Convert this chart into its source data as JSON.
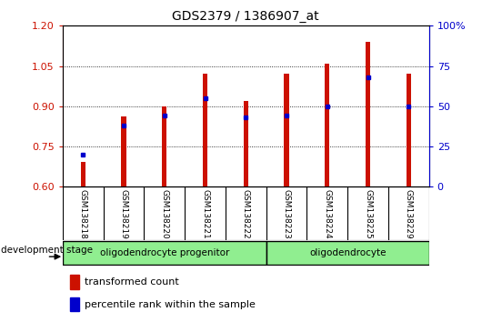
{
  "title": "GDS2379 / 1386907_at",
  "samples": [
    "GSM138218",
    "GSM138219",
    "GSM138220",
    "GSM138221",
    "GSM138222",
    "GSM138223",
    "GSM138224",
    "GSM138225",
    "GSM138229"
  ],
  "transformed_count": [
    0.692,
    0.862,
    0.9,
    1.02,
    0.92,
    1.02,
    1.058,
    1.14,
    1.02
  ],
  "percentile_rank": [
    20,
    38,
    44,
    55,
    43,
    44,
    50,
    68,
    50
  ],
  "ylim_left": [
    0.6,
    1.2
  ],
  "ylim_right": [
    0,
    100
  ],
  "yticks_left": [
    0.6,
    0.75,
    0.9,
    1.05,
    1.2
  ],
  "yticks_right": [
    0,
    25,
    50,
    75,
    100
  ],
  "bar_color": "#cc1100",
  "dot_color": "#0000cc",
  "bar_bottom": 0.6,
  "groups": [
    {
      "label": "oligodendrocyte progenitor",
      "samples_count": 5
    },
    {
      "label": "oligodendrocyte",
      "samples_count": 4
    }
  ],
  "group_color": "#90ee90",
  "group_label_prefix": "development stage",
  "legend_items": [
    {
      "label": "transformed count",
      "color": "#cc1100"
    },
    {
      "label": "percentile rank within the sample",
      "color": "#0000cc"
    }
  ],
  "bg_color": "#ffffff",
  "plot_bg": "#ffffff",
  "grid_color": "#000000",
  "tick_label_color_left": "#cc1100",
  "tick_label_color_right": "#0000cc",
  "bar_width": 0.12,
  "xlabel_box_color": "#d0d0d0",
  "group_separator_idx": 4
}
